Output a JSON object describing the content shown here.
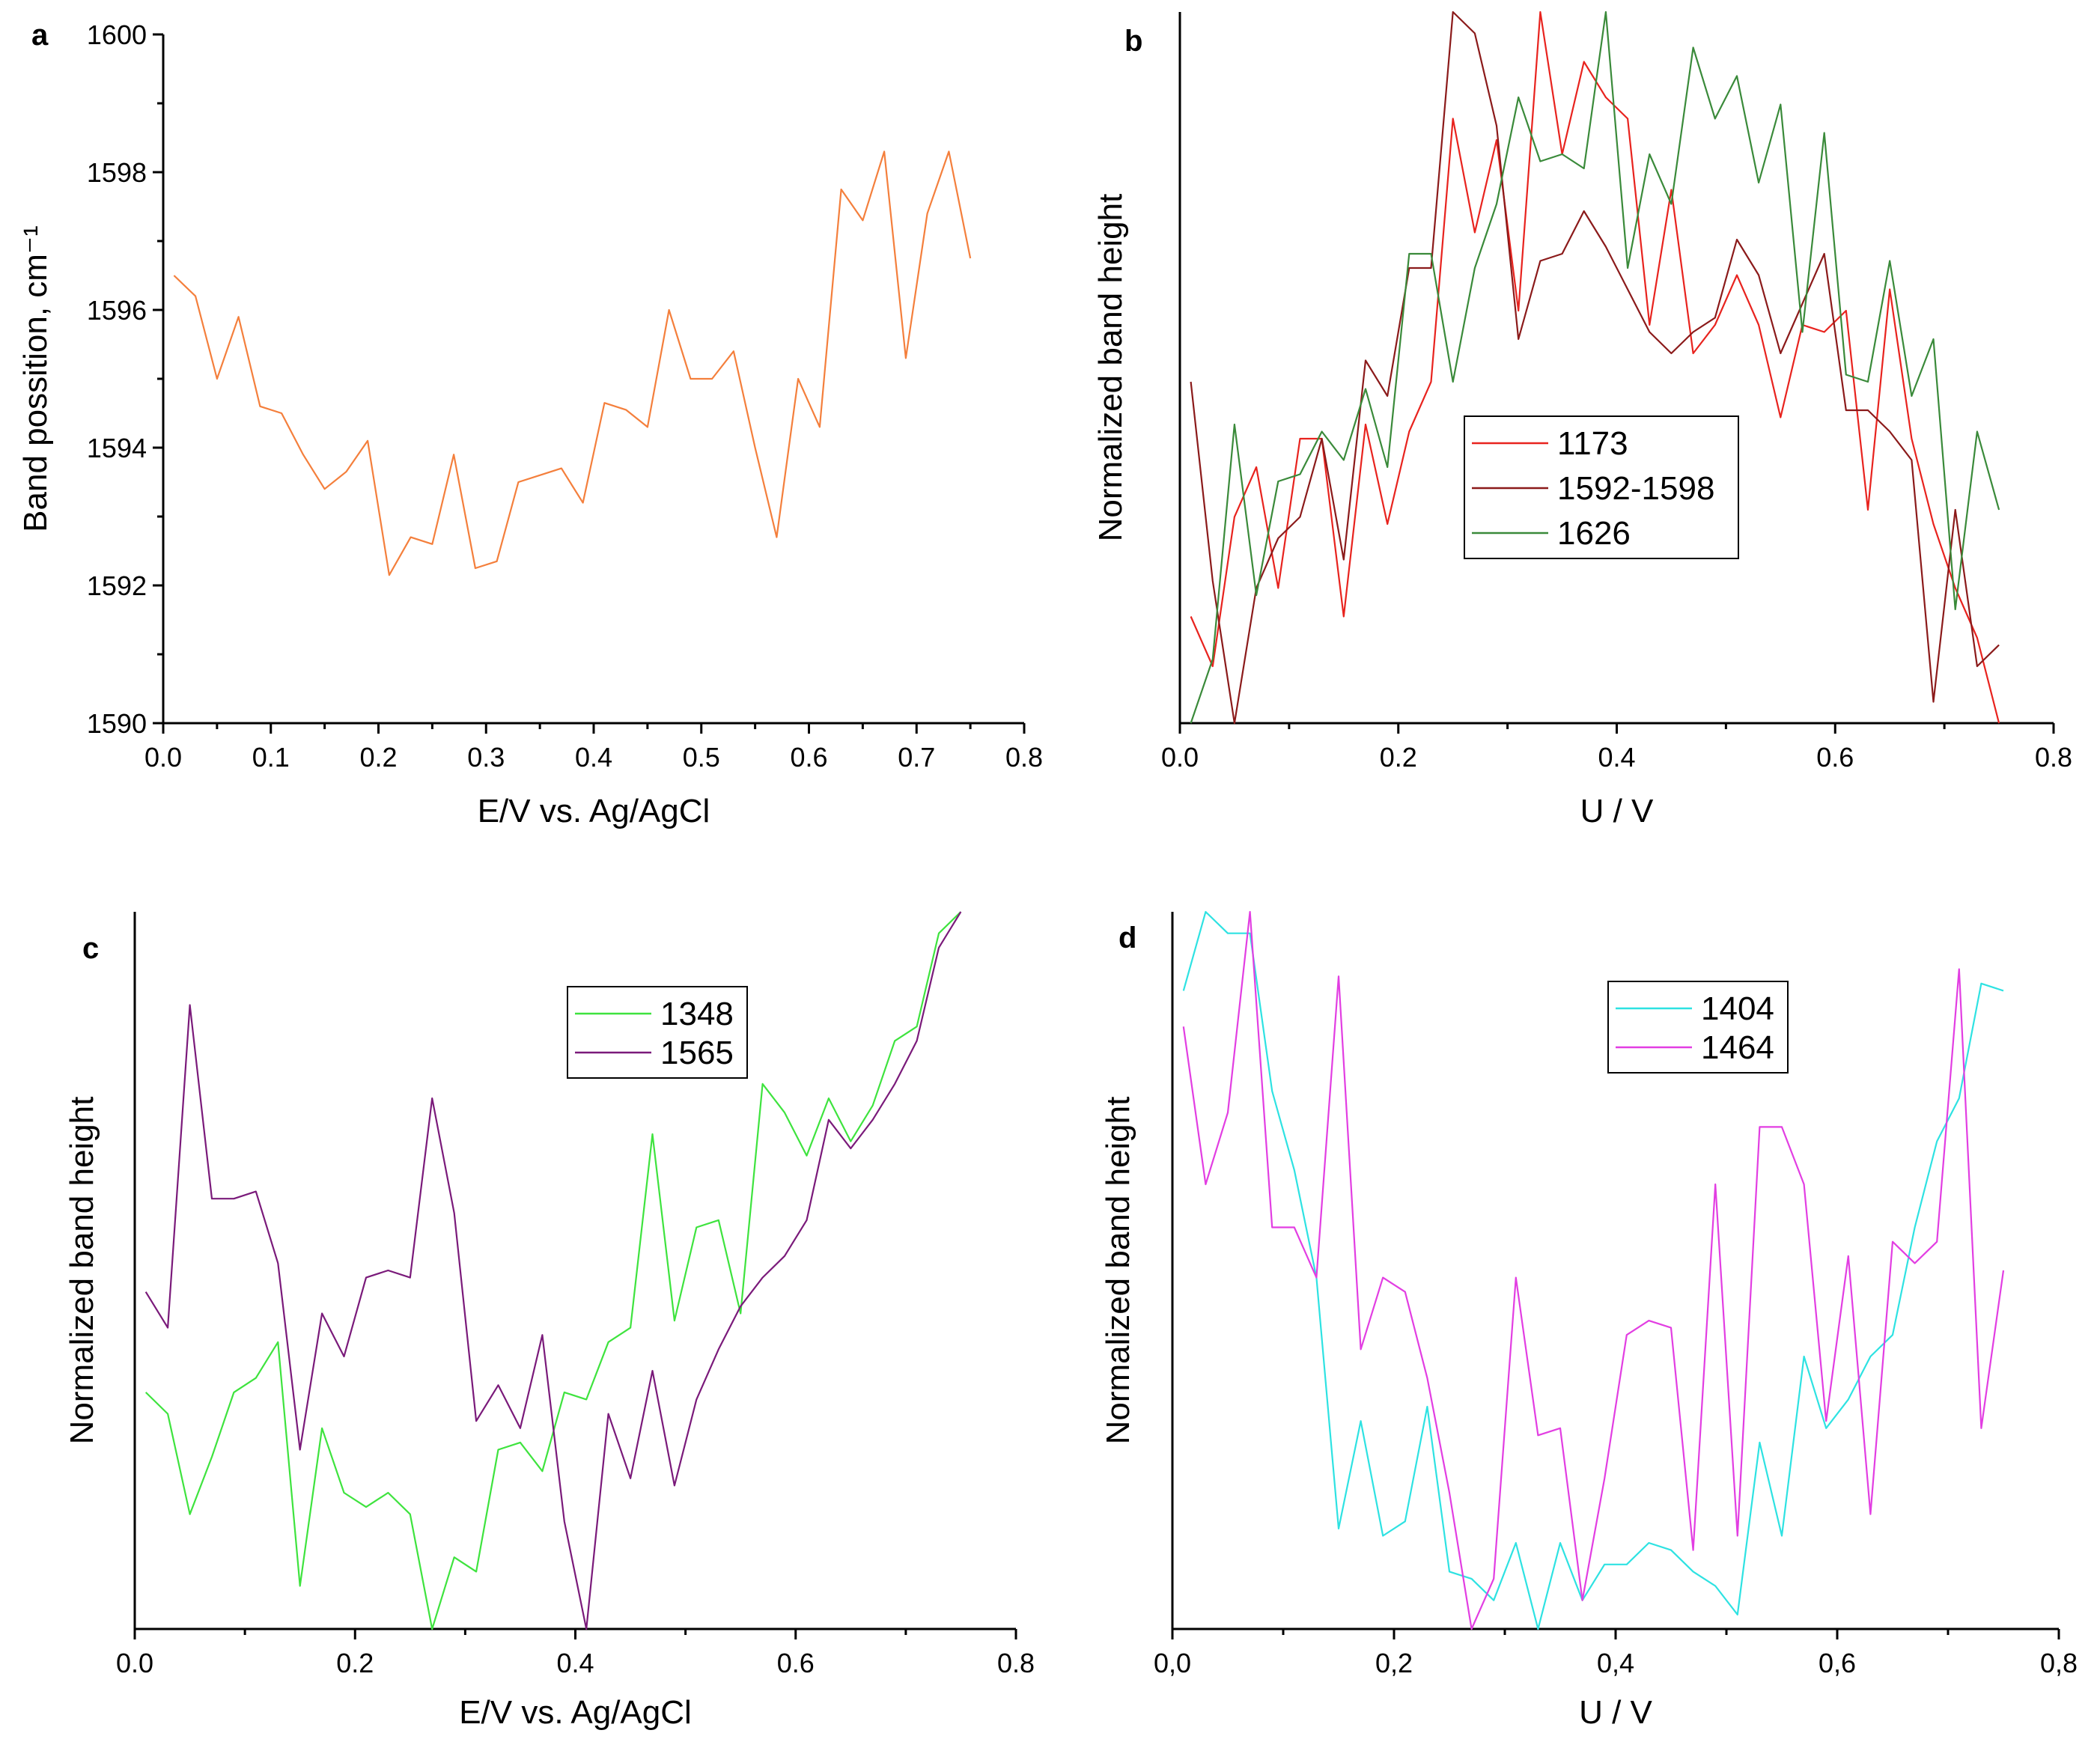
{
  "chart_data": [
    {
      "id": "a",
      "panel_label": "a",
      "type": "line",
      "xlabel": "E/V vs. Ag/AgCl",
      "ylabel": "Band possition, cm⁻¹",
      "xlim": [
        0,
        0.8
      ],
      "ylim": [
        1590,
        1600
      ],
      "xticks": [
        0.0,
        0.1,
        0.2,
        0.3,
        0.4,
        0.5,
        0.6,
        0.7,
        0.8
      ],
      "xtick_labels": [
        "0.0",
        "0.1",
        "0.2",
        "0.3",
        "0.4",
        "0.5",
        "0.6",
        "0.7",
        "0.8"
      ],
      "yticks": [
        1590,
        1592,
        1594,
        1596,
        1598,
        1600
      ],
      "ytick_labels": [
        "1590",
        "1592",
        "1594",
        "1596",
        "1598",
        "1600"
      ],
      "x": [
        0.01,
        0.03,
        0.05,
        0.07,
        0.09,
        0.11,
        0.13,
        0.15,
        0.17,
        0.19,
        0.21,
        0.23,
        0.25,
        0.27,
        0.29,
        0.31,
        0.33,
        0.35,
        0.37,
        0.39,
        0.41,
        0.43,
        0.45,
        0.47,
        0.49,
        0.51,
        0.53,
        0.55,
        0.57,
        0.59,
        0.61,
        0.63,
        0.65,
        0.67,
        0.69,
        0.71,
        0.73,
        0.75
      ],
      "series": [
        {
          "name": "Band position",
          "color": "#f47f3c",
          "values": [
            1596.5,
            1596.2,
            1595.0,
            1595.9,
            1594.6,
            1594.5,
            1593.9,
            1593.4,
            1593.65,
            1594.1,
            1592.15,
            1592.7,
            1592.6,
            1593.9,
            1592.25,
            1592.35,
            1593.5,
            1593.6,
            1593.7,
            1593.2,
            1594.65,
            1594.55,
            1594.3,
            1596.0,
            1595.0,
            1595.0,
            1595.4,
            1594.0,
            1592.7,
            1595.0,
            1594.3,
            1597.75,
            1597.3,
            1598.3,
            1595.3,
            1597.4,
            1598.3,
            1596.75
          ]
        }
      ]
    },
    {
      "id": "b",
      "panel_label": "b",
      "type": "line",
      "xlabel": "U / V",
      "ylabel": "Normalized band height",
      "xlim": [
        0,
        0.8
      ],
      "ylim": [
        0,
        1
      ],
      "xticks": [
        0.0,
        0.2,
        0.4,
        0.6,
        0.8
      ],
      "xtick_labels": [
        "0.0",
        "0.2",
        "0.4",
        "0.6",
        "0.8"
      ],
      "x": [
        0.01,
        0.03,
        0.05,
        0.07,
        0.09,
        0.11,
        0.13,
        0.15,
        0.17,
        0.19,
        0.21,
        0.23,
        0.25,
        0.27,
        0.29,
        0.31,
        0.33,
        0.35,
        0.37,
        0.39,
        0.41,
        0.43,
        0.45,
        0.47,
        0.49,
        0.51,
        0.53,
        0.55,
        0.57,
        0.59,
        0.61,
        0.63,
        0.65,
        0.67,
        0.69,
        0.71,
        0.73,
        0.75
      ],
      "legend": {
        "position": "center",
        "entries": [
          "1173",
          "1592-1598",
          "1626"
        ]
      },
      "series": [
        {
          "name": "1173",
          "color": "#e8231e",
          "values": [
            0.15,
            0.08,
            0.29,
            0.36,
            0.19,
            0.4,
            0.4,
            0.15,
            0.42,
            0.28,
            0.41,
            0.48,
            0.85,
            0.69,
            0.82,
            0.58,
            1.0,
            0.8,
            0.93,
            0.88,
            0.85,
            0.56,
            0.75,
            0.52,
            0.56,
            0.63,
            0.56,
            0.43,
            0.56,
            0.55,
            0.58,
            0.3,
            0.61,
            0.4,
            0.28,
            0.19,
            0.12,
            0.0
          ]
        },
        {
          "name": "1592-1598",
          "color": "#8b1a1a",
          "values": [
            0.48,
            0.2,
            0.0,
            0.19,
            0.26,
            0.29,
            0.4,
            0.23,
            0.51,
            0.46,
            0.64,
            0.64,
            1.0,
            0.97,
            0.84,
            0.54,
            0.65,
            0.66,
            0.72,
            0.67,
            0.61,
            0.55,
            0.52,
            0.55,
            0.57,
            0.68,
            0.63,
            0.52,
            0.59,
            0.66,
            0.44,
            0.44,
            0.41,
            0.37,
            0.03,
            0.3,
            0.08,
            0.11
          ]
        },
        {
          "name": "1626",
          "color": "#3a8a3a",
          "values": [
            0.0,
            0.09,
            0.42,
            0.18,
            0.34,
            0.35,
            0.41,
            0.37,
            0.47,
            0.36,
            0.66,
            0.66,
            0.48,
            0.64,
            0.73,
            0.88,
            0.79,
            0.8,
            0.78,
            1.0,
            0.64,
            0.8,
            0.73,
            0.95,
            0.85,
            0.91,
            0.76,
            0.87,
            0.55,
            0.83,
            0.49,
            0.48,
            0.65,
            0.46,
            0.54,
            0.16,
            0.41,
            0.3
          ]
        }
      ]
    },
    {
      "id": "c",
      "panel_label": "c",
      "type": "line",
      "xlabel": "E/V vs. Ag/AgCl",
      "ylabel": "Normalized band height",
      "xlim": [
        0,
        0.8
      ],
      "ylim": [
        0,
        1
      ],
      "xticks": [
        0.0,
        0.2,
        0.4,
        0.6,
        0.8
      ],
      "xtick_labels": [
        "0.0",
        "0.2",
        "0.4",
        "0.6",
        "0.8"
      ],
      "x": [
        0.01,
        0.03,
        0.05,
        0.07,
        0.09,
        0.11,
        0.13,
        0.15,
        0.17,
        0.19,
        0.21,
        0.23,
        0.25,
        0.27,
        0.29,
        0.31,
        0.33,
        0.35,
        0.37,
        0.39,
        0.41,
        0.43,
        0.45,
        0.47,
        0.49,
        0.51,
        0.53,
        0.55,
        0.57,
        0.59,
        0.61,
        0.63,
        0.65,
        0.67,
        0.69,
        0.71,
        0.73,
        0.75
      ],
      "legend": {
        "position": "top-center",
        "entries": [
          "1348",
          "1565"
        ]
      },
      "series": [
        {
          "name": "1348",
          "color": "#3ee33e",
          "values": [
            0.33,
            0.3,
            0.16,
            0.24,
            0.33,
            0.35,
            0.4,
            0.06,
            0.28,
            0.19,
            0.17,
            0.19,
            0.16,
            0.0,
            0.1,
            0.08,
            0.25,
            0.26,
            0.22,
            0.33,
            0.32,
            0.4,
            0.42,
            0.69,
            0.43,
            0.56,
            0.57,
            0.44,
            0.76,
            0.72,
            0.66,
            0.74,
            0.68,
            0.73,
            0.82,
            0.84,
            0.97,
            1.0
          ]
        },
        {
          "name": "1565",
          "color": "#7a1a7a",
          "values": [
            0.47,
            0.42,
            0.87,
            0.6,
            0.6,
            0.61,
            0.51,
            0.25,
            0.44,
            0.38,
            0.49,
            0.5,
            0.49,
            0.74,
            0.58,
            0.29,
            0.34,
            0.28,
            0.41,
            0.15,
            0.0,
            0.3,
            0.21,
            0.36,
            0.2,
            0.32,
            0.39,
            0.45,
            0.49,
            0.52,
            0.57,
            0.71,
            0.67,
            0.71,
            0.76,
            0.82,
            0.95,
            1.0
          ]
        }
      ]
    },
    {
      "id": "d",
      "panel_label": "d",
      "type": "line",
      "xlabel": "U / V",
      "ylabel": "Normalized band height",
      "xlim": [
        0,
        0.8
      ],
      "ylim": [
        0,
        1
      ],
      "xticks": [
        0.0,
        0.2,
        0.4,
        0.6,
        0.8
      ],
      "xtick_labels": [
        "0,0",
        "0,2",
        "0,4",
        "0,6",
        "0,8"
      ],
      "x": [
        0.01,
        0.03,
        0.05,
        0.07,
        0.09,
        0.11,
        0.13,
        0.15,
        0.17,
        0.19,
        0.21,
        0.23,
        0.25,
        0.27,
        0.29,
        0.31,
        0.33,
        0.35,
        0.37,
        0.39,
        0.41,
        0.43,
        0.45,
        0.47,
        0.49,
        0.51,
        0.53,
        0.55,
        0.57,
        0.59,
        0.61,
        0.63,
        0.65,
        0.67,
        0.69,
        0.71,
        0.73,
        0.75
      ],
      "legend": {
        "position": "top-center",
        "entries": [
          "1404",
          "1464"
        ]
      },
      "series": [
        {
          "name": "1404",
          "color": "#2ee2e2",
          "values": [
            0.89,
            1.0,
            0.97,
            0.97,
            0.75,
            0.64,
            0.49,
            0.14,
            0.29,
            0.13,
            0.15,
            0.31,
            0.08,
            0.07,
            0.04,
            0.12,
            0.0,
            0.12,
            0.04,
            0.09,
            0.09,
            0.12,
            0.11,
            0.08,
            0.06,
            0.02,
            0.26,
            0.13,
            0.38,
            0.28,
            0.32,
            0.38,
            0.41,
            0.56,
            0.68,
            0.74,
            0.9,
            0.89
          ]
        },
        {
          "name": "1464",
          "color": "#e23ee2",
          "values": [
            0.84,
            0.62,
            0.72,
            1.0,
            0.56,
            0.56,
            0.49,
            0.91,
            0.39,
            0.49,
            0.47,
            0.35,
            0.19,
            0.0,
            0.07,
            0.49,
            0.27,
            0.28,
            0.04,
            0.21,
            0.41,
            0.43,
            0.42,
            0.11,
            0.62,
            0.13,
            0.7,
            0.7,
            0.62,
            0.29,
            0.52,
            0.16,
            0.54,
            0.51,
            0.54,
            0.92,
            0.28,
            0.5
          ]
        }
      ]
    }
  ]
}
